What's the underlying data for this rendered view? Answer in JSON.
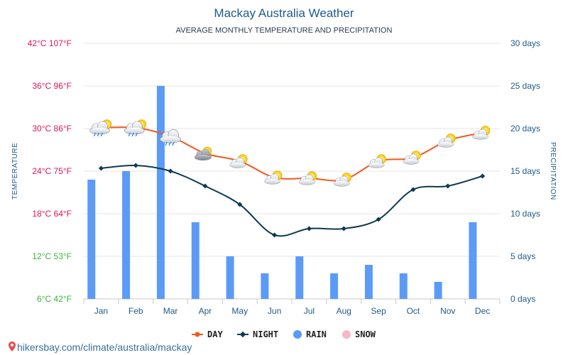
{
  "header": {
    "title": "Mackay Australia Weather",
    "subtitle": "AVERAGE MONTHLY TEMPERATURE AND PRECIPITATION"
  },
  "axes": {
    "left_title": "TEMPERATURE",
    "right_title": "PRECIPITATION",
    "left_ticks": [
      "6°C 42°F",
      "12°C 53°F",
      "18°C 64°F",
      "24°C 75°F",
      "30°C 86°F",
      "36°C 96°F",
      "42°C 107°F"
    ],
    "left_tick_colors": [
      "#3cb43c",
      "#3cb43c",
      "#e0135c",
      "#e0135c",
      "#e0135c",
      "#e0135c",
      "#e0135c"
    ],
    "right_ticks": [
      "0 days",
      "5 days",
      "10 days",
      "15 days",
      "20 days",
      "25 days",
      "30 days"
    ]
  },
  "legend": {
    "day": "DAY",
    "night": "NIGHT",
    "rain": "RAIN",
    "snow": "SNOW"
  },
  "source": "hikersbay.com/climate/australia/mackay",
  "colors": {
    "day": "#f25a1e",
    "night": "#0f3a50",
    "rain": "#5b9bf7",
    "snow": "#f6b7c8",
    "grid": "#e6e6e6"
  },
  "chart_data": {
    "type": "bar",
    "title": "Mackay Australia Weather",
    "subtitle": "AVERAGE MONTHLY TEMPERATURE AND PRECIPITATION",
    "categories": [
      "Jan",
      "Feb",
      "Mar",
      "Apr",
      "May",
      "Jun",
      "Jul",
      "Aug",
      "Sep",
      "Oct",
      "Nov",
      "Dec"
    ],
    "series": [
      {
        "name": "DAY",
        "type": "line",
        "axis": "temperature",
        "unit": "°C",
        "values": [
          30.1,
          30.1,
          28.9,
          26.5,
          25.4,
          23.1,
          23.0,
          22.8,
          25.4,
          25.9,
          28.3,
          29.4
        ]
      },
      {
        "name": "NIGHT",
        "type": "line",
        "axis": "temperature",
        "unit": "°C",
        "values": [
          24.4,
          24.8,
          24.0,
          21.9,
          19.3,
          15.0,
          15.9,
          15.9,
          17.2,
          21.4,
          21.9,
          23.3
        ]
      },
      {
        "name": "RAIN",
        "type": "bar",
        "axis": "precipitation",
        "unit": "days",
        "values": [
          14,
          15,
          25,
          9,
          5,
          3,
          5,
          3,
          4,
          3,
          2,
          9
        ]
      },
      {
        "name": "SNOW",
        "type": "bar",
        "axis": "precipitation",
        "unit": "days",
        "values": [
          0,
          0,
          0,
          0,
          0,
          0,
          0,
          0,
          0,
          0,
          0,
          0
        ]
      }
    ],
    "ylim_temperature": [
      6,
      42
    ],
    "ylim_precipitation": [
      0,
      30
    ],
    "weather_icons": [
      "cloud-rain-sun",
      "cloud-rain-sun",
      "cloud-rain",
      "cloud-sun",
      "sun-cloud",
      "sun-cloud",
      "sun-cloud",
      "sun-cloud",
      "sun-cloud",
      "sun-cloud",
      "sun-cloud",
      "sun-cloud"
    ],
    "grid": true,
    "legend_position": "bottom"
  }
}
